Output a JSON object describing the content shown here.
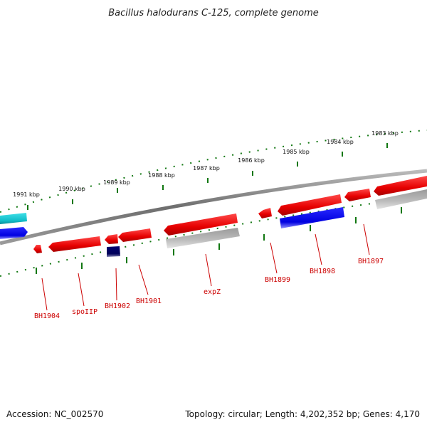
{
  "title": "Bacillus halodurans C-125, complete genome",
  "scale_labels": [
    "1991 kbp",
    "1990 kbp",
    "1989 kbp",
    "1988 kbp",
    "1987 kbp",
    "1986 kbp",
    "1985 kbp",
    "1984 kbp",
    "1983 kbp"
  ],
  "gene_labels": [
    "BH1904",
    "spoIIP",
    "BH1902",
    "BH1901",
    "expZ",
    "BH1899",
    "BH1898",
    "BH1897"
  ],
  "footer": {
    "accession": "Accession: NC_002570",
    "summary": "Topology: circular; Length: 4,202,352 bp; Genes: 4,170"
  },
  "colors": {
    "forward_gene": "#ee0000",
    "reverse_gene_gray": "#a8a8a8",
    "reverse_gene_blue": "#1010ee",
    "dark_gene": "#000080",
    "cyan_gene": "#20c8d0",
    "backbone": "#888888",
    "ticks": "#117711",
    "label_red": "#cc0000"
  }
}
